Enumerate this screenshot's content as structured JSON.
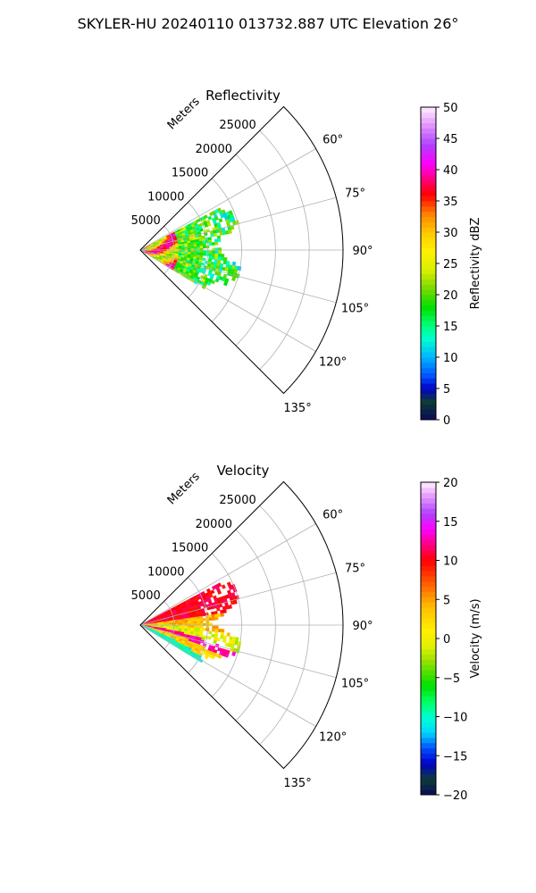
{
  "figure": {
    "suptitle": "SKYLER-HU  20240110  013732.887 UTC Elevation 26°"
  },
  "colors": {
    "grid": "#b0b0b0",
    "frame": "#000000"
  },
  "chart_data": [
    {
      "type": "polar-sector",
      "title": "Reflectivity",
      "radial_label": "Meters",
      "radial_ticks": [
        5000,
        10000,
        15000,
        20000,
        25000
      ],
      "radial_tick_labels": [
        "5000",
        "10000",
        "15000",
        "20000",
        "25000"
      ],
      "r_max": 30000,
      "theta_range_deg": [
        45,
        135
      ],
      "theta_ticks_deg": [
        60,
        75,
        90,
        105,
        120,
        135
      ],
      "theta_tick_labels": [
        "60°",
        "75°",
        "90°",
        "105°",
        "120°",
        "135°"
      ],
      "data_extent": {
        "r_max": 15000,
        "theta_deg": [
          62,
          120
        ]
      },
      "colorbar": {
        "label": "Reflectivity dBZ",
        "range": [
          0,
          50
        ],
        "ticks": [
          0,
          5,
          10,
          15,
          20,
          25,
          30,
          35,
          40,
          45,
          50
        ],
        "tick_labels": [
          "0",
          "5",
          "10",
          "15",
          "20",
          "25",
          "30",
          "35",
          "40",
          "45",
          "50"
        ],
        "stops": [
          [
            0,
            "#0a0a5a"
          ],
          [
            3,
            "#0d3d35"
          ],
          [
            5,
            "#0000c8"
          ],
          [
            7,
            "#0050ff"
          ],
          [
            10,
            "#00b4ff"
          ],
          [
            13,
            "#00ffd0"
          ],
          [
            15,
            "#00ff80"
          ],
          [
            18,
            "#00e000"
          ],
          [
            21,
            "#7ad800"
          ],
          [
            24,
            "#d8f000"
          ],
          [
            27,
            "#fff000"
          ],
          [
            30,
            "#ffc800"
          ],
          [
            33,
            "#ff8000"
          ],
          [
            36,
            "#ff0000"
          ],
          [
            38,
            "#ff0060"
          ],
          [
            41,
            "#ff00ff"
          ],
          [
            44,
            "#b040ff"
          ],
          [
            47,
            "#e090ff"
          ],
          [
            50,
            "#fff0ff"
          ]
        ]
      },
      "field_summary": "Cluttered near-field returns: 30–40 dBZ within 5 km (red/yellow), 15–25 dBZ out to ~13 km (green/yellow)"
    },
    {
      "type": "polar-sector",
      "title": "Velocity",
      "radial_label": "Meters",
      "radial_ticks": [
        5000,
        10000,
        15000,
        20000,
        25000
      ],
      "radial_tick_labels": [
        "5000",
        "10000",
        "15000",
        "20000",
        "25000"
      ],
      "r_max": 30000,
      "theta_range_deg": [
        45,
        135
      ],
      "theta_ticks_deg": [
        60,
        75,
        90,
        105,
        120,
        135
      ],
      "theta_tick_labels": [
        "60°",
        "75°",
        "90°",
        "105°",
        "120°",
        "135°"
      ],
      "data_extent": {
        "r_max": 15000,
        "theta_deg": [
          62,
          120
        ]
      },
      "colorbar": {
        "label": "Velocity (m/s)",
        "range": [
          -20,
          20
        ],
        "ticks": [
          -20,
          -15,
          -10,
          -5,
          0,
          5,
          10,
          15,
          20
        ],
        "tick_labels": [
          "−20",
          "−15",
          "−10",
          "−5",
          "0",
          "5",
          "10",
          "15",
          "20"
        ],
        "stops": [
          [
            -20,
            "#0a0a5a"
          ],
          [
            -18,
            "#0d3d35"
          ],
          [
            -16,
            "#0000c8"
          ],
          [
            -14,
            "#0050ff"
          ],
          [
            -12,
            "#00d8ff"
          ],
          [
            -10,
            "#00ffd0"
          ],
          [
            -8,
            "#00ff60"
          ],
          [
            -6,
            "#00e000"
          ],
          [
            -3,
            "#90e000"
          ],
          [
            -1,
            "#e0f000"
          ],
          [
            1,
            "#fff000"
          ],
          [
            4,
            "#ffc000"
          ],
          [
            7,
            "#ff6000"
          ],
          [
            10,
            "#ff0000"
          ],
          [
            12,
            "#ff0080"
          ],
          [
            14,
            "#ff00ff"
          ],
          [
            16,
            "#b040ff"
          ],
          [
            18,
            "#e090ff"
          ],
          [
            20,
            "#fff0ff"
          ]
        ]
      },
      "field_summary": "Bands: +5 to +12 m/s (orange/red) to the north, near 0 m/s (yellow/green) in centre, +10 m/s band and −10 to −15 m/s (cyan) to the south"
    }
  ]
}
